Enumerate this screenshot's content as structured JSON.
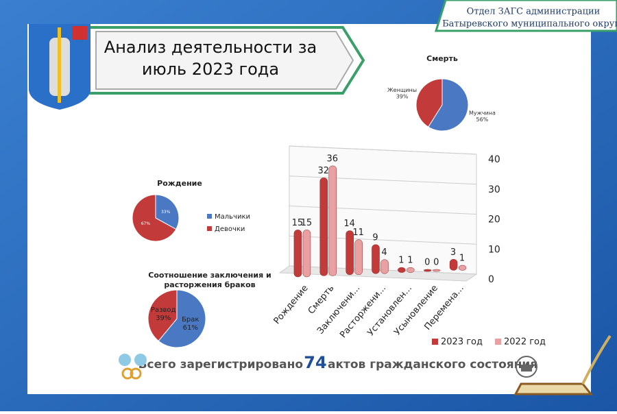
{
  "header": {
    "org": [
      "Отдел ЗАГС администрации",
      "Батыревского муниципального округа"
    ],
    "title": [
      "Анализ деятельности за",
      "июль 2023 года"
    ]
  },
  "footer": {
    "prefix": "Всего зарегистрировано",
    "count": 74,
    "suffix": "актов гражданского состояния"
  },
  "chart_data": [
    {
      "type": "pie",
      "title": "Смерть",
      "categories": [
        "Мужчина",
        "Женщины"
      ],
      "values": [
        56,
        39
      ],
      "value_labels": [
        "56%",
        "39%"
      ],
      "colors": [
        "#4a78c2",
        "#c23b3a"
      ],
      "labels": "outside"
    },
    {
      "type": "pie",
      "title": "Рождение",
      "categories": [
        "Мальчики",
        "Девочки"
      ],
      "values": [
        33,
        67
      ],
      "value_labels": [
        "33%",
        "67%"
      ],
      "colors": [
        "#4a78c2",
        "#c23b3a"
      ],
      "labels": "inside",
      "legend": "right"
    },
    {
      "type": "pie",
      "title": "Соотношение заключения и расторжения браков",
      "categories": [
        "Брак",
        "Развод"
      ],
      "values": [
        61,
        39
      ],
      "value_labels": [
        "61%",
        "39%"
      ],
      "colors": [
        "#4a78c2",
        "#c23b3a"
      ],
      "labels": "inside"
    },
    {
      "type": "bar",
      "categories": [
        "Рождение",
        "Смерть",
        "Заключени...",
        "Расторжени...",
        "Установлен...",
        "Усыновление",
        "Перемена..."
      ],
      "series": [
        {
          "name": "2023 год",
          "color": "#c23b3a",
          "values": [
            15,
            32,
            14,
            9,
            1,
            0,
            3
          ]
        },
        {
          "name": "2022 год",
          "color": "#e8a0a3",
          "values": [
            15,
            36,
            11,
            4,
            1,
            0,
            1
          ]
        }
      ],
      "ylim": [
        0,
        40
      ],
      "yticks": [
        0,
        10,
        20,
        30,
        40
      ],
      "grid": true,
      "legend": "bottom"
    }
  ]
}
